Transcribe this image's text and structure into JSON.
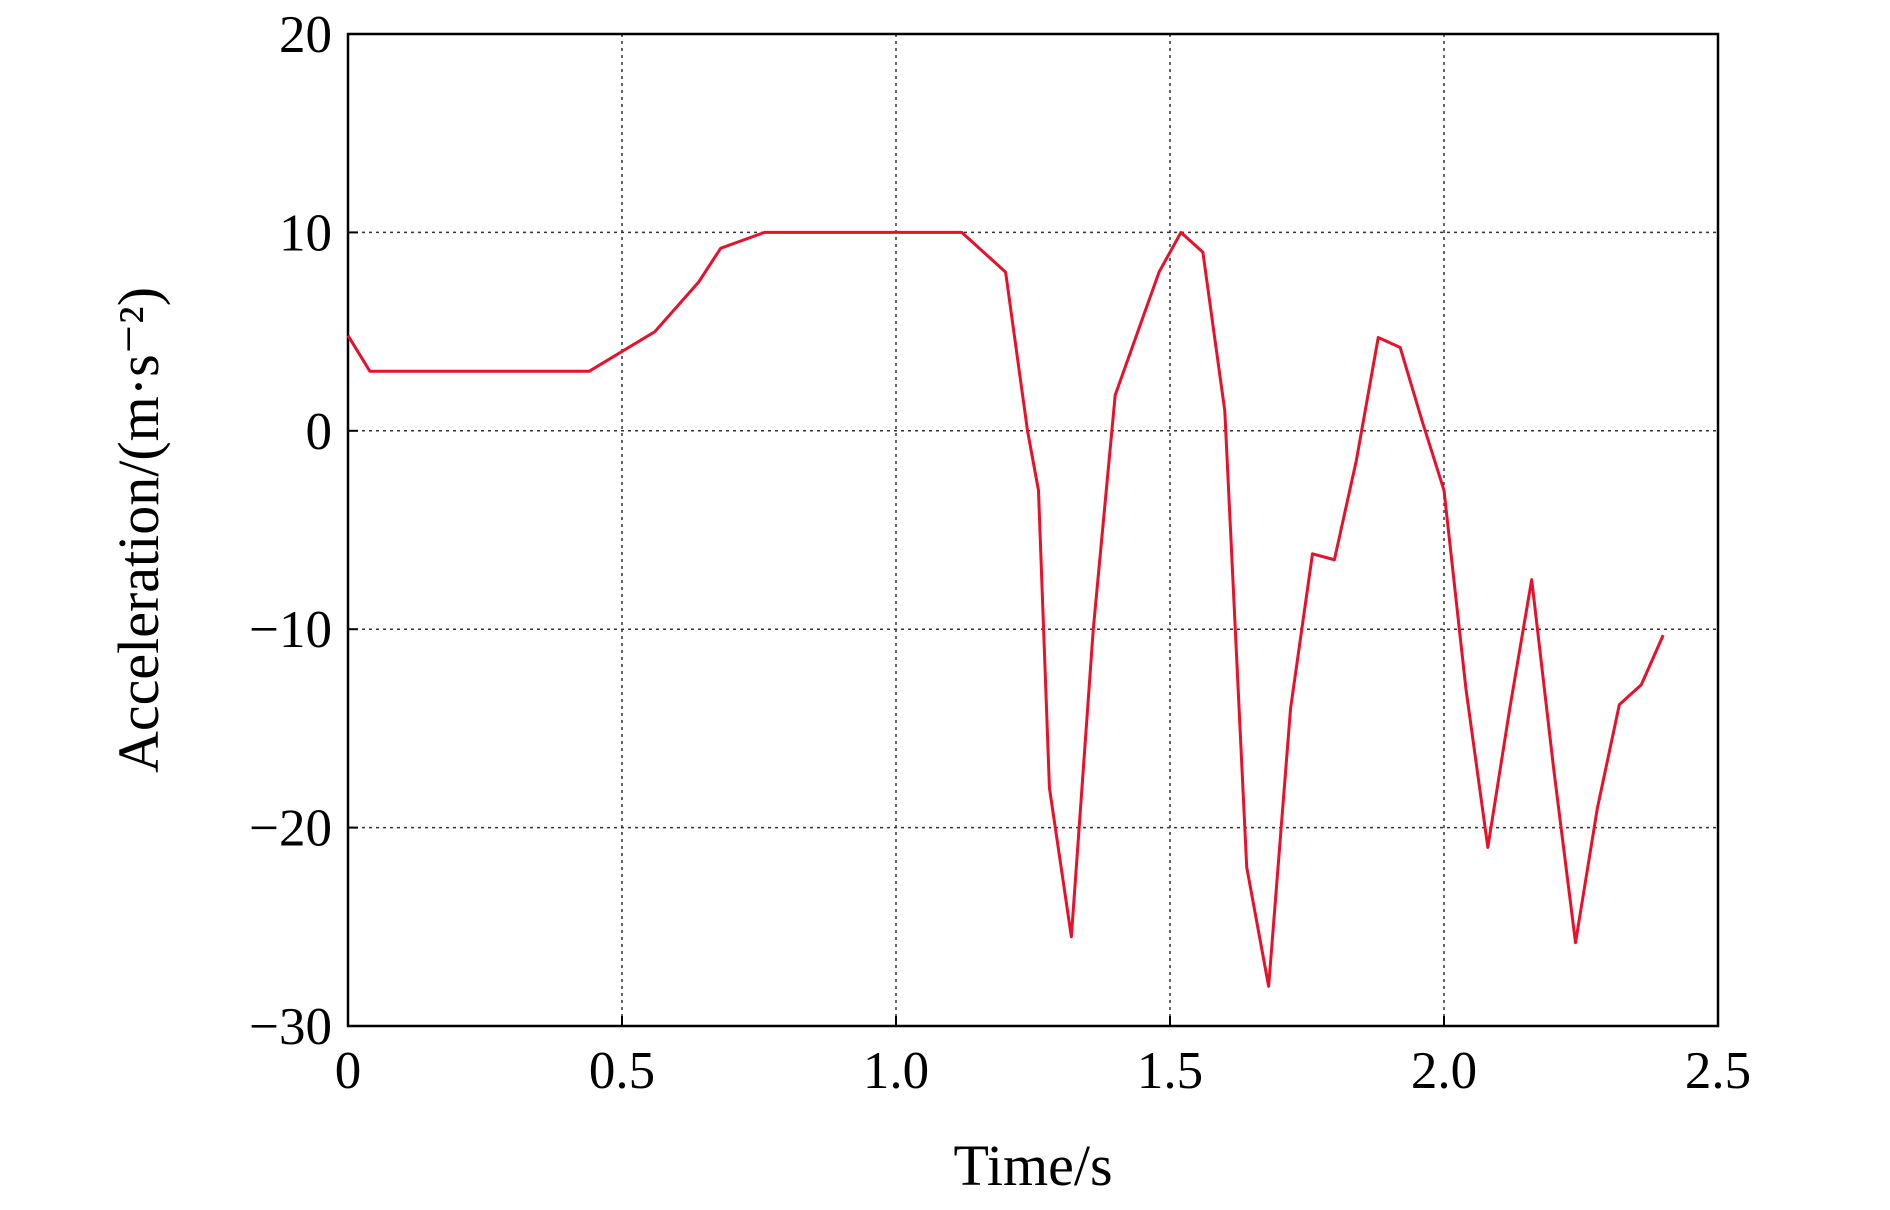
{
  "chart_data": {
    "type": "line",
    "xlabel": "Time/s",
    "ylabel": "Acceleration/(m·s⁻²)",
    "x": [
      0,
      0.04,
      0.44,
      0.56,
      0.64,
      0.68,
      0.76,
      1.12,
      1.2,
      1.24,
      1.26,
      1.28,
      1.32,
      1.36,
      1.4,
      1.48,
      1.52,
      1.56,
      1.6,
      1.64,
      1.68,
      1.72,
      1.76,
      1.8,
      1.84,
      1.88,
      1.92,
      1.96,
      2.0,
      2.04,
      2.08,
      2.12,
      2.16,
      2.2,
      2.24,
      2.28,
      2.32,
      2.36,
      2.4
    ],
    "series": [
      {
        "color": "#e8102a",
        "values": [
          4.8,
          3,
          3,
          5,
          7.5,
          9.2,
          10,
          10,
          8,
          0,
          -3,
          -18,
          -25.5,
          -10,
          1.8,
          8,
          10,
          9,
          1,
          -22,
          -28,
          -14,
          -6.2,
          -6.5,
          -1.5,
          4.7,
          4.2,
          0.5,
          -3,
          -13,
          -21,
          -14,
          -7.5,
          -17,
          -25.8,
          -19,
          -13.8,
          -12.8,
          -10.3
        ]
      }
    ],
    "xlim": [
      0,
      2.5
    ],
    "xticks": [
      0,
      0.5,
      {
        "value": 1.0,
        "label": "1.0"
      },
      1.5,
      {
        "value": 2.0,
        "label": "2.0"
      },
      2.5
    ],
    "ylim": [
      -30,
      20
    ],
    "yticks": [
      {
        "value": -30,
        "label": "−30"
      },
      {
        "value": -20,
        "label": "−20"
      },
      {
        "value": -10,
        "label": "−10"
      },
      0,
      10,
      20
    ],
    "grid": true
  }
}
